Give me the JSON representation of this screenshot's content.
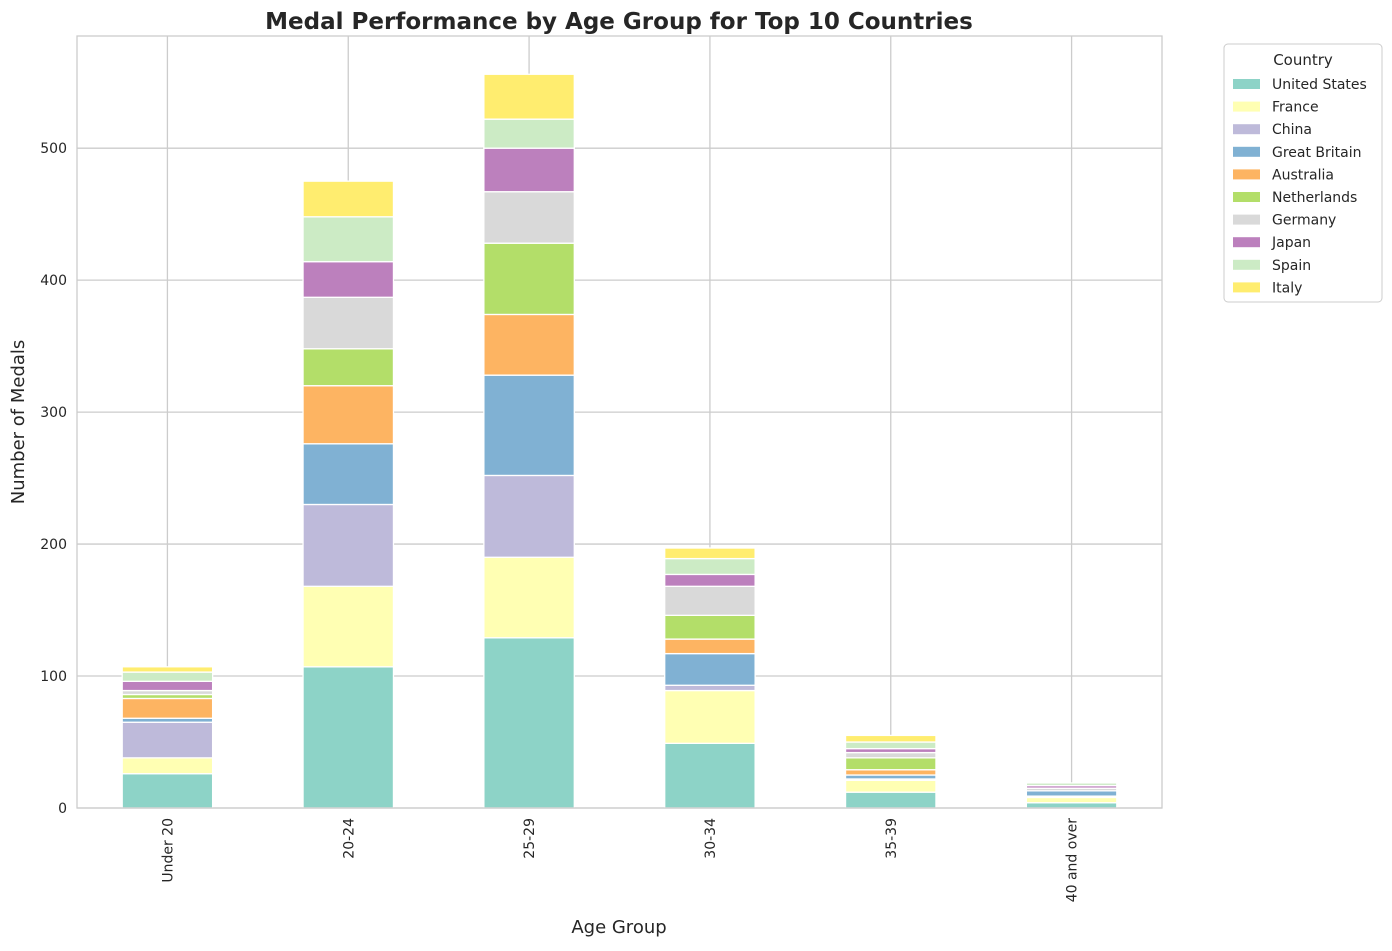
{
  "chart_data": {
    "type": "bar",
    "stacked": true,
    "title": "Medal Performance by Age Group for Top 10 Countries",
    "xlabel": "Age Group",
    "ylabel": "Number of Medals",
    "categories": [
      "Under 20",
      "20-24",
      "25-29",
      "30-34",
      "35-39",
      "40 and over"
    ],
    "ylim": [
      0,
      585
    ],
    "yticks": [
      0,
      100,
      200,
      300,
      400,
      500
    ],
    "grid": true,
    "legend": {
      "title": "Country",
      "placement": "outside-top-right"
    },
    "series": [
      {
        "name": "United States",
        "color": "#8dd3c7",
        "values": [
          26,
          107,
          129,
          49,
          12,
          4
        ]
      },
      {
        "name": "France",
        "color": "#ffffb3",
        "values": [
          12,
          61,
          61,
          40,
          9,
          4
        ]
      },
      {
        "name": "China",
        "color": "#bebada",
        "values": [
          27,
          62,
          62,
          4,
          1,
          1
        ]
      },
      {
        "name": "Great Britain",
        "color": "#80b1d3",
        "values": [
          3,
          46,
          76,
          24,
          3,
          4
        ]
      },
      {
        "name": "Australia",
        "color": "#fdb462",
        "values": [
          15,
          44,
          46,
          11,
          4,
          0
        ]
      },
      {
        "name": "Netherlands",
        "color": "#b3de69",
        "values": [
          3,
          28,
          54,
          18,
          9,
          0
        ]
      },
      {
        "name": "Germany",
        "color": "#d9d9d9",
        "values": [
          3,
          39,
          39,
          22,
          4,
          2
        ]
      },
      {
        "name": "Japan",
        "color": "#bc80bd",
        "values": [
          7,
          27,
          33,
          9,
          3,
          2
        ]
      },
      {
        "name": "Spain",
        "color": "#ccebc5",
        "values": [
          7,
          34,
          22,
          12,
          5,
          2
        ]
      },
      {
        "name": "Italy",
        "color": "#ffed6f",
        "values": [
          4,
          27,
          34,
          8,
          5,
          0
        ]
      }
    ]
  }
}
